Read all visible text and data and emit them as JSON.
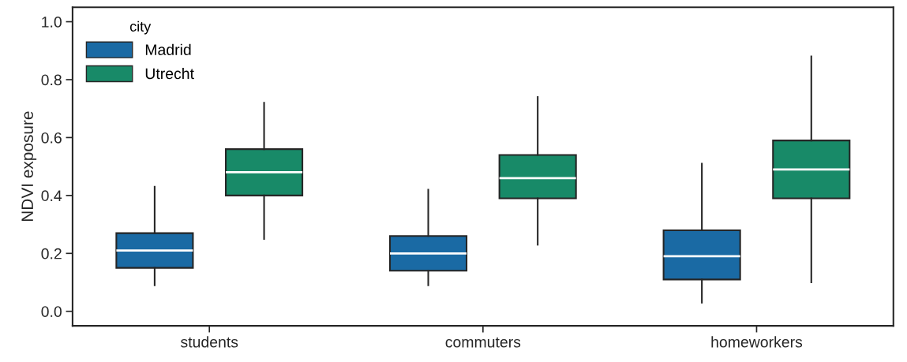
{
  "chart_data": {
    "type": "box",
    "ylabel": "NDVI exposure",
    "legend_title": "city",
    "legend": "top left",
    "grid": false,
    "categories": [
      "students",
      "commuters",
      "homeworkers"
    ],
    "ylim": [
      -0.05,
      1.05
    ],
    "yticks": [
      {
        "value": 0,
        "label": "0.0"
      },
      {
        "value": 0.2,
        "label": "0.2"
      },
      {
        "value": 0.4,
        "label": "0.4"
      },
      {
        "value": 0.6,
        "label": "0.6"
      },
      {
        "value": 0.8,
        "label": "0.8"
      },
      {
        "value": 1,
        "label": "1.0"
      }
    ],
    "series": [
      {
        "name": "Madrid",
        "color": "#1a6aa4",
        "boxes": [
          {
            "low": 0.09,
            "q1": 0.15,
            "median": 0.21,
            "q3": 0.27,
            "high": 0.43
          },
          {
            "low": 0.09,
            "q1": 0.14,
            "median": 0.2,
            "q3": 0.26,
            "high": 0.42
          },
          {
            "low": 0.03,
            "q1": 0.11,
            "median": 0.19,
            "q3": 0.28,
            "high": 0.51
          }
        ]
      },
      {
        "name": "Utrecht",
        "color": "#188a68",
        "boxes": [
          {
            "low": 0.25,
            "q1": 0.4,
            "median": 0.48,
            "q3": 0.56,
            "high": 0.72
          },
          {
            "low": 0.23,
            "q1": 0.39,
            "median": 0.46,
            "q3": 0.54,
            "high": 0.74
          },
          {
            "low": 0.1,
            "q1": 0.39,
            "median": 0.49,
            "q3": 0.59,
            "high": 0.88
          }
        ]
      }
    ]
  }
}
